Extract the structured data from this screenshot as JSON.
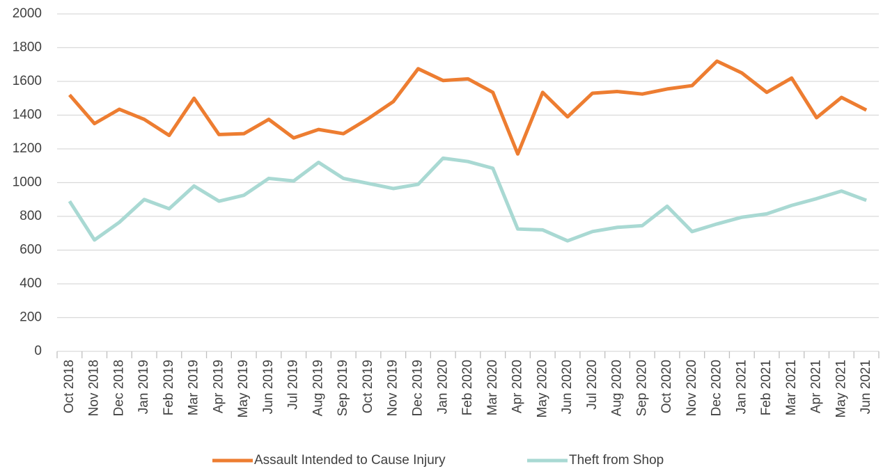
{
  "chart_data": {
    "type": "line",
    "categories": [
      "Oct 2018",
      "Nov 2018",
      "Dec 2018",
      "Jan 2019",
      "Feb 2019",
      "Mar 2019",
      "Apr 2019",
      "May 2019",
      "Jun 2019",
      "Jul 2019",
      "Aug 2019",
      "Sep 2019",
      "Oct 2019",
      "Nov 2019",
      "Dec 2019",
      "Jan 2020",
      "Feb 2020",
      "Mar 2020",
      "Apr 2020",
      "May 2020",
      "Jun 2020",
      "Jul 2020",
      "Aug 2020",
      "Sep 2020",
      "Oct 2020",
      "Nov 2020",
      "Dec 2020",
      "Jan 2021",
      "Feb 2021",
      "Mar 2021",
      "Apr 2021",
      "May 2021",
      "Jun 2021"
    ],
    "series": [
      {
        "name": "Assault Intended to Cause Injury",
        "color": "#ed7d31",
        "values": [
          1520,
          1350,
          1435,
          1375,
          1280,
          1500,
          1285,
          1290,
          1375,
          1265,
          1315,
          1290,
          1380,
          1480,
          1675,
          1605,
          1615,
          1535,
          1170,
          1535,
          1390,
          1530,
          1540,
          1525,
          1555,
          1575,
          1720,
          1650,
          1535,
          1620,
          1385,
          1505,
          1430
        ]
      },
      {
        "name": "Theft from Shop",
        "color": "#a9d9d3",
        "values": [
          890,
          660,
          765,
          900,
          845,
          980,
          890,
          925,
          1025,
          1010,
          1120,
          1025,
          995,
          965,
          990,
          1145,
          1125,
          1085,
          725,
          720,
          655,
          710,
          735,
          745,
          860,
          710,
          755,
          795,
          815,
          865,
          905,
          950,
          895
        ]
      }
    ],
    "ylim": [
      0,
      2000
    ],
    "yticks": [
      0,
      200,
      400,
      600,
      800,
      1000,
      1200,
      1400,
      1600,
      1800,
      2000
    ],
    "grid": true,
    "legend": "bottom"
  }
}
